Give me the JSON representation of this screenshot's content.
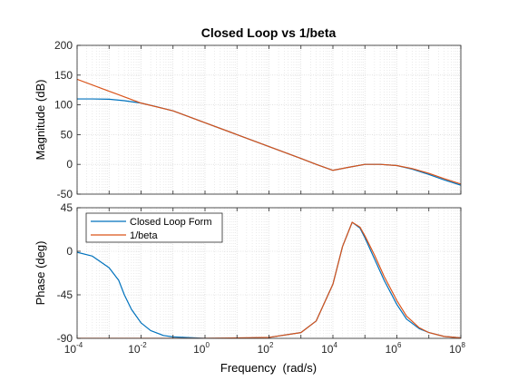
{
  "chart_data": [
    {
      "type": "line",
      "title": "Closed Loop vs 1/beta",
      "ylabel": "Magnitude (dB)",
      "xlabel": "",
      "xscale": "log",
      "xlim": [
        0.0001,
        100000000
      ],
      "ylim": [
        -50,
        200
      ],
      "yticks": [
        "200",
        "150",
        "100",
        "50",
        "0",
        "-50"
      ],
      "grid": true,
      "series": [
        {
          "name": "Closed Loop Form",
          "color": "#0072BD",
          "x": [
            0.0001,
            0.0003,
            0.001,
            0.003,
            0.01,
            0.03,
            0.1,
            1,
            10,
            100,
            1000,
            3000,
            10000,
            30000,
            100000,
            300000,
            1000000,
            3000000,
            10000000,
            30000000,
            100000000
          ],
          "y": [
            110,
            110,
            109.5,
            107,
            103,
            97,
            90,
            70,
            50,
            30,
            10,
            0,
            -10,
            -5,
            0,
            0,
            -2,
            -8,
            -17,
            -26,
            -35
          ]
        },
        {
          "name": "1/beta",
          "color": "#D95319",
          "x": [
            0.0001,
            0.001,
            0.01,
            0.1,
            1,
            10,
            100,
            1000,
            3000,
            10000,
            30000,
            100000,
            300000,
            1000000,
            3000000,
            10000000,
            30000000,
            100000000
          ],
          "y": [
            143,
            123,
            103,
            90,
            70,
            50,
            30,
            10,
            0,
            -10,
            -5,
            0,
            0,
            -2,
            -7,
            -15,
            -24,
            -33
          ]
        }
      ]
    },
    {
      "type": "line",
      "title": "",
      "ylabel": "Phase (deg)",
      "xlabel": "Frequency  (rad/s)",
      "xscale": "log",
      "xlim": [
        0.0001,
        100000000
      ],
      "ylim": [
        -90,
        45
      ],
      "yticks": [
        "45",
        "0",
        "-45",
        "-90"
      ],
      "xticks_base": [
        "10",
        "10",
        "10",
        "10",
        "10",
        "10",
        "10"
      ],
      "xticks_exp": [
        "-4",
        "-2",
        "0",
        "2",
        "4",
        "6",
        "8"
      ],
      "legend_position": "top-left",
      "grid": true,
      "series": [
        {
          "name": "Closed Loop Form",
          "color": "#0072BD",
          "x": [
            0.0001,
            0.0003,
            0.001,
            0.002,
            0.003,
            0.005,
            0.01,
            0.02,
            0.05,
            0.1,
            1,
            10,
            100,
            1000,
            3000,
            10000,
            20000,
            40000,
            70000,
            100000,
            200000,
            400000,
            1000000,
            2000000,
            5000000,
            10000000,
            30000000,
            100000000
          ],
          "y": [
            -1,
            -5,
            -17,
            -30,
            -45,
            -60,
            -74,
            -82,
            -87,
            -88.5,
            -90,
            -90,
            -89,
            -84,
            -72,
            -34,
            5,
            30,
            24,
            14,
            -8,
            -30,
            -55,
            -70,
            -80,
            -84,
            -88,
            -89.5
          ]
        },
        {
          "name": "1/beta",
          "color": "#D95319",
          "x": [
            0.0001,
            1,
            100,
            1000,
            3000,
            10000,
            20000,
            40000,
            70000,
            100000,
            200000,
            400000,
            1000000,
            2000000,
            5000000,
            10000000,
            30000000,
            100000000
          ],
          "y": [
            -90,
            -90,
            -89,
            -84,
            -72,
            -34,
            5,
            30,
            25,
            16,
            -4,
            -26,
            -51,
            -67,
            -79,
            -84,
            -88,
            -89.5
          ]
        }
      ]
    }
  ]
}
